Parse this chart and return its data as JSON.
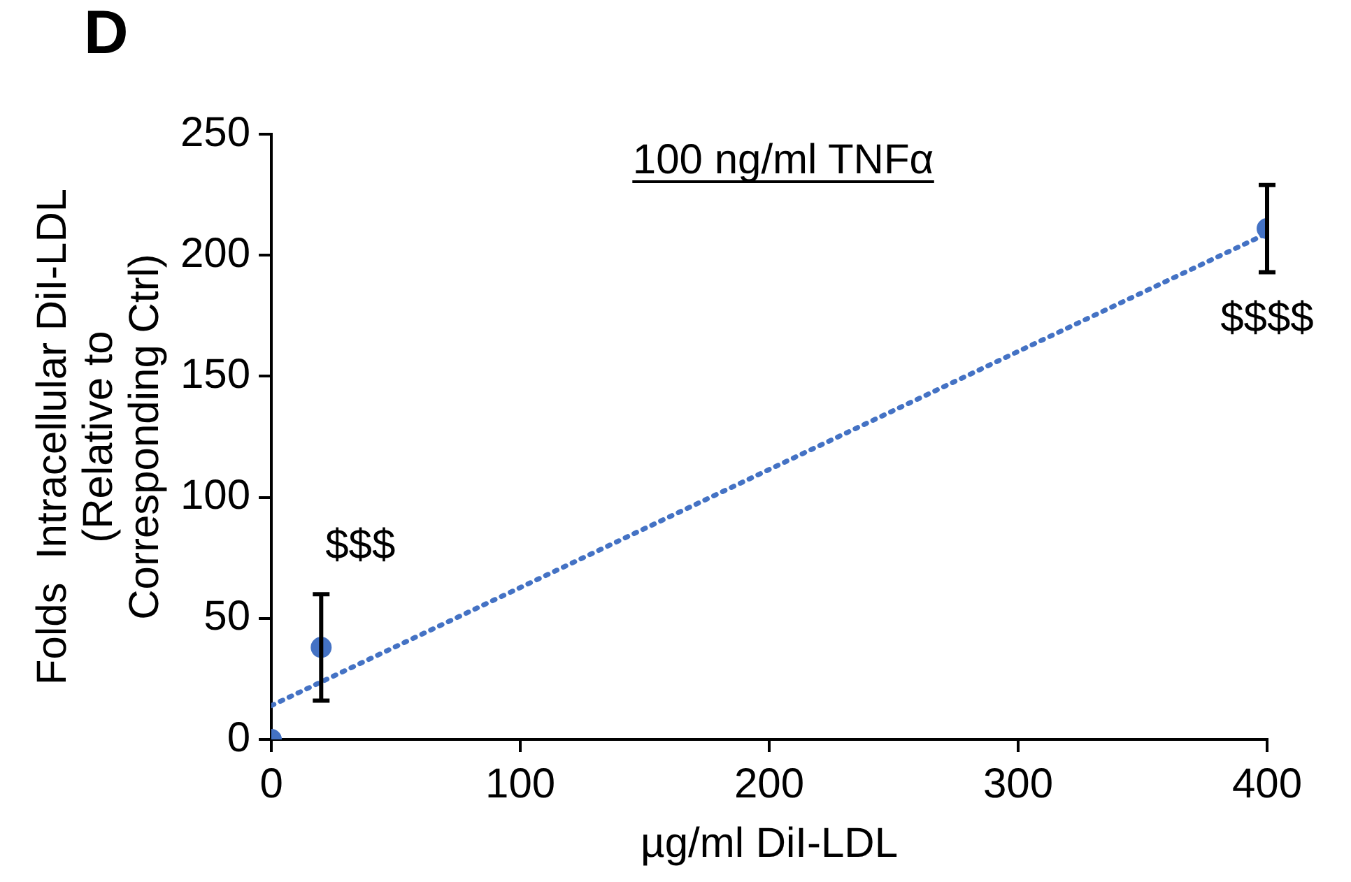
{
  "chart_data": {
    "type": "scatter",
    "title": "100 ng/ml TNFα",
    "xlabel": "µg/ml DiI-LDL",
    "ylabel": "Folds  Intracellular DiI-LDL\n(Relative to\nCorresponding Ctrl)",
    "x": [
      0,
      20,
      400
    ],
    "series": [
      {
        "color": "#4472c4",
        "values": [
          0,
          38,
          211
        ],
        "errors": [
          null,
          22,
          18
        ],
        "marker": "circle"
      },
      {
        "type": "line",
        "color": "#4472c4",
        "x": [
          0,
          400
        ],
        "values": [
          14,
          209
        ],
        "line_style": "dotted",
        "marker": "none"
      }
    ],
    "xlim": [
      0,
      400
    ],
    "xticks": [
      0,
      100,
      200,
      300,
      400
    ],
    "ylim": [
      0,
      250
    ],
    "yticks": [
      0,
      50,
      100,
      150,
      200,
      250
    ],
    "grid": false,
    "legend": false,
    "annotations": [
      "D",
      {
        "text": "$$$",
        "x": 20,
        "y": 38
      },
      {
        "text": "$$$$",
        "x": 400,
        "y": 211
      }
    ]
  }
}
